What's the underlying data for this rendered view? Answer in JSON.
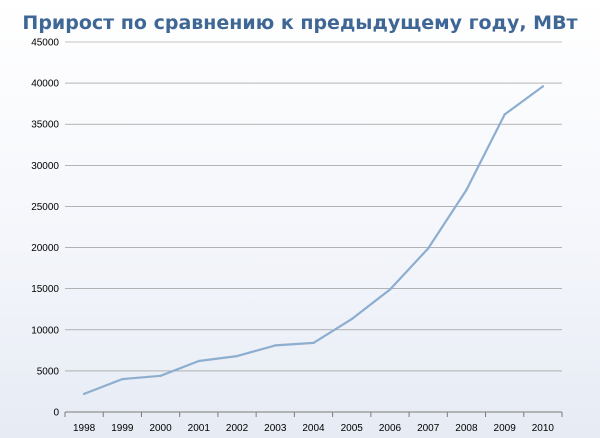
{
  "chart_data": {
    "type": "line",
    "title": "Прирост по сравнению к предыдущему году, МВт",
    "xlabel": "",
    "ylabel": "",
    "categories": [
      "1998",
      "1999",
      "2000",
      "2001",
      "2002",
      "2003",
      "2004",
      "2005",
      "2006",
      "2007",
      "2008",
      "2009",
      "2010"
    ],
    "series": [
      {
        "name": "",
        "values": [
          2200,
          4000,
          4400,
          6200,
          6800,
          8100,
          8400,
          11300,
          14900,
          19900,
          27000,
          36200,
          39600
        ]
      }
    ],
    "ylim": [
      0,
      45000
    ],
    "yticks": [
      0,
      5000,
      10000,
      15000,
      20000,
      25000,
      30000,
      35000,
      40000,
      45000
    ],
    "grid": true,
    "legend": "none",
    "colors": {
      "line": "#8eaed0",
      "title": "#3f6796"
    }
  }
}
